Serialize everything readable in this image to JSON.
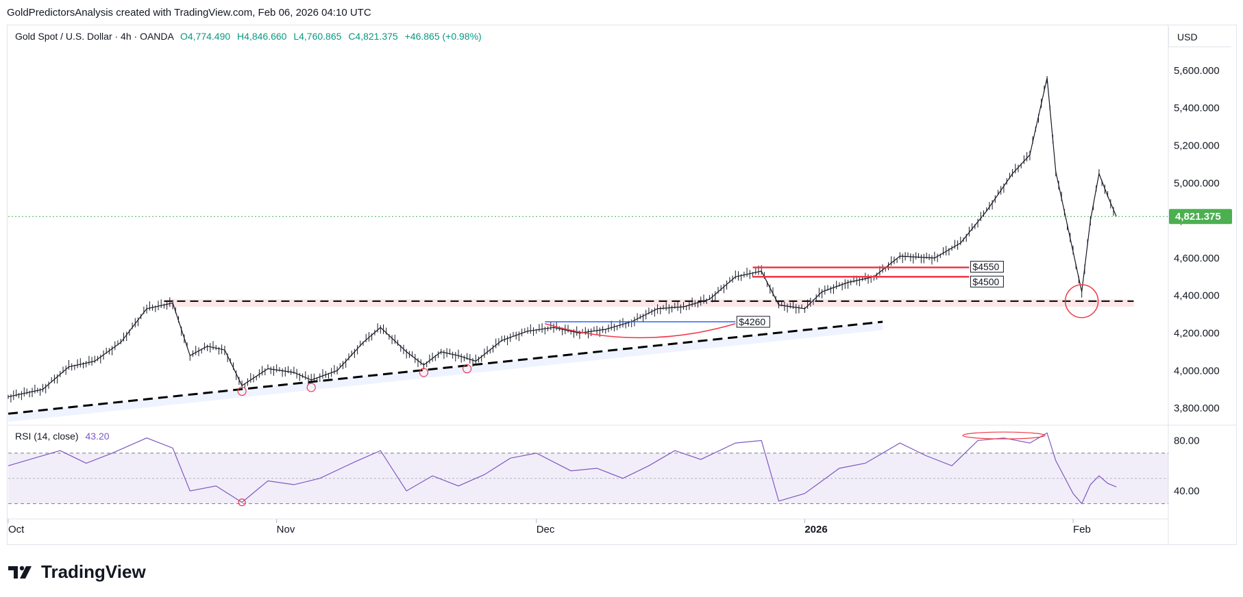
{
  "header": {
    "caption": "GoldPredictorsAnalysis created with TradingView.com, Feb 06, 2026 04:10 UTC"
  },
  "symbol": {
    "name": "Gold Spot / U.S. Dollar · 4h · OANDA",
    "open": "O4,774.490",
    "high": "H4,846.660",
    "low": "L4,760.865",
    "close": "C4,821.375",
    "change": "+46.865 (+0.98%)"
  },
  "currency": "USD",
  "rsi": {
    "label": "RSI (14, close)",
    "value": "43.20"
  },
  "footer": {
    "brand": "TradingView"
  },
  "colors": {
    "up": "#089981",
    "price_line": "#4caf50",
    "rsi": "#7e57c2",
    "annotation_red": "#f23645",
    "annotation_blue": "#2962ff"
  },
  "chart_data": [
    {
      "type": "candlestick",
      "title": "Gold Spot / U.S. Dollar · 4h · OANDA",
      "x_ticks": [
        "Oct",
        "Nov",
        "Dec",
        "2026",
        "Feb"
      ],
      "y_ticks": [
        "3,800.000",
        "4,000.000",
        "4,200.000",
        "4,400.000",
        "4,600.000",
        "4,800.000",
        "5,000.000",
        "5,200.000",
        "5,400.000",
        "5,600.000"
      ],
      "ylim": [
        3720,
        5720
      ],
      "last_price": 4821.375,
      "last_price_label": "4,821.375",
      "price_path": [
        [
          "2025-10-01",
          3860
        ],
        [
          "2025-10-05",
          3900
        ],
        [
          "2025-10-08",
          4020
        ],
        [
          "2025-10-11",
          4050
        ],
        [
          "2025-10-14",
          4150
        ],
        [
          "2025-10-17",
          4330
        ],
        [
          "2025-10-20",
          4360
        ],
        [
          "2025-10-22",
          4080
        ],
        [
          "2025-10-24",
          4130
        ],
        [
          "2025-10-26",
          4110
        ],
        [
          "2025-10-28",
          3920
        ],
        [
          "2025-10-31",
          4010
        ],
        [
          "2025-11-03",
          3990
        ],
        [
          "2025-11-05",
          3950
        ],
        [
          "2025-11-08",
          4000
        ],
        [
          "2025-11-11",
          4150
        ],
        [
          "2025-11-13",
          4230
        ],
        [
          "2025-11-16",
          4100
        ],
        [
          "2025-11-18",
          4030
        ],
        [
          "2025-11-20",
          4100
        ],
        [
          "2025-11-22",
          4080
        ],
        [
          "2025-11-24",
          4050
        ],
        [
          "2025-11-27",
          4160
        ],
        [
          "2025-11-30",
          4210
        ],
        [
          "2025-12-03",
          4230
        ],
        [
          "2025-12-06",
          4200
        ],
        [
          "2025-12-09",
          4220
        ],
        [
          "2025-12-12",
          4260
        ],
        [
          "2025-12-15",
          4330
        ],
        [
          "2025-12-18",
          4340
        ],
        [
          "2025-12-21",
          4380
        ],
        [
          "2025-12-24",
          4500
        ],
        [
          "2025-12-27",
          4530
        ],
        [
          "2025-12-29",
          4350
        ],
        [
          "2026-01-01",
          4330
        ],
        [
          "2026-01-03",
          4420
        ],
        [
          "2026-01-06",
          4470
        ],
        [
          "2026-01-09",
          4500
        ],
        [
          "2026-01-12",
          4610
        ],
        [
          "2026-01-16",
          4600
        ],
        [
          "2026-01-19",
          4680
        ],
        [
          "2026-01-22",
          4850
        ],
        [
          "2026-01-25",
          5050
        ],
        [
          "2026-01-27",
          5150
        ],
        [
          "2026-01-29",
          5560
        ],
        [
          "2026-01-30",
          5060
        ],
        [
          "2026-02-02",
          4420
        ],
        [
          "2026-02-03",
          4800
        ],
        [
          "2026-02-04",
          5050
        ],
        [
          "2026-02-05",
          4930
        ],
        [
          "2026-02-06",
          4821.375
        ]
      ],
      "annotations": [
        {
          "type": "horizontal_line",
          "price": 4550,
          "label": "$4550",
          "color": "#f23645"
        },
        {
          "type": "horizontal_line",
          "price": 4500,
          "label": "$4500",
          "color": "#f23645"
        },
        {
          "type": "horizontal_line",
          "price": 4260,
          "label": "$4260",
          "color": "#2962ff"
        },
        {
          "type": "dashed_line",
          "from": [
            "2025-10-19",
            4370
          ],
          "to": [
            "2026-02-08",
            4370
          ]
        },
        {
          "type": "dashed_trendline",
          "from": [
            "2025-10-01",
            3770
          ],
          "to": [
            "2026-01-10",
            4260
          ]
        },
        {
          "type": "circle",
          "at": [
            "2026-02-02",
            4370
          ]
        }
      ]
    },
    {
      "type": "line",
      "title": "RSI (14, close)",
      "series": [
        {
          "name": "RSI (14, close)"
        }
      ],
      "y_ticks": [
        "80.00",
        "40.00"
      ],
      "ylim": [
        20,
        90
      ],
      "band": [
        30,
        70
      ],
      "midline": 50,
      "last_value": 43.2,
      "rsi_path": [
        [
          "2025-10-01",
          60
        ],
        [
          "2025-10-04",
          66
        ],
        [
          "2025-10-07",
          72
        ],
        [
          "2025-10-10",
          62
        ],
        [
          "2025-10-13",
          70
        ],
        [
          "2025-10-17",
          82
        ],
        [
          "2025-10-20",
          74
        ],
        [
          "2025-10-22",
          40
        ],
        [
          "2025-10-25",
          44
        ],
        [
          "2025-10-28",
          31
        ],
        [
          "2025-10-31",
          48
        ],
        [
          "2025-11-03",
          45
        ],
        [
          "2025-11-06",
          50
        ],
        [
          "2025-11-10",
          63
        ],
        [
          "2025-11-13",
          72
        ],
        [
          "2025-11-16",
          40
        ],
        [
          "2025-11-19",
          52
        ],
        [
          "2025-11-22",
          44
        ],
        [
          "2025-11-25",
          53
        ],
        [
          "2025-11-28",
          66
        ],
        [
          "2025-12-01",
          70
        ],
        [
          "2025-12-05",
          56
        ],
        [
          "2025-12-08",
          58
        ],
        [
          "2025-12-11",
          50
        ],
        [
          "2025-12-14",
          60
        ],
        [
          "2025-12-17",
          72
        ],
        [
          "2025-12-20",
          65
        ],
        [
          "2025-12-24",
          78
        ],
        [
          "2025-12-27",
          80
        ],
        [
          "2025-12-29",
          32
        ],
        [
          "2026-01-01",
          38
        ],
        [
          "2026-01-05",
          58
        ],
        [
          "2026-01-08",
          62
        ],
        [
          "2026-01-12",
          78
        ],
        [
          "2026-01-15",
          68
        ],
        [
          "2026-01-18",
          60
        ],
        [
          "2026-01-21",
          80
        ],
        [
          "2026-01-24",
          82
        ],
        [
          "2026-01-27",
          78
        ],
        [
          "2026-01-29",
          86
        ],
        [
          "2026-01-30",
          64
        ],
        [
          "2026-02-01",
          38
        ],
        [
          "2026-02-02",
          30
        ],
        [
          "2026-02-03",
          45
        ],
        [
          "2026-02-04",
          52
        ],
        [
          "2026-02-05",
          46
        ],
        [
          "2026-02-06",
          43.2
        ]
      ]
    }
  ]
}
